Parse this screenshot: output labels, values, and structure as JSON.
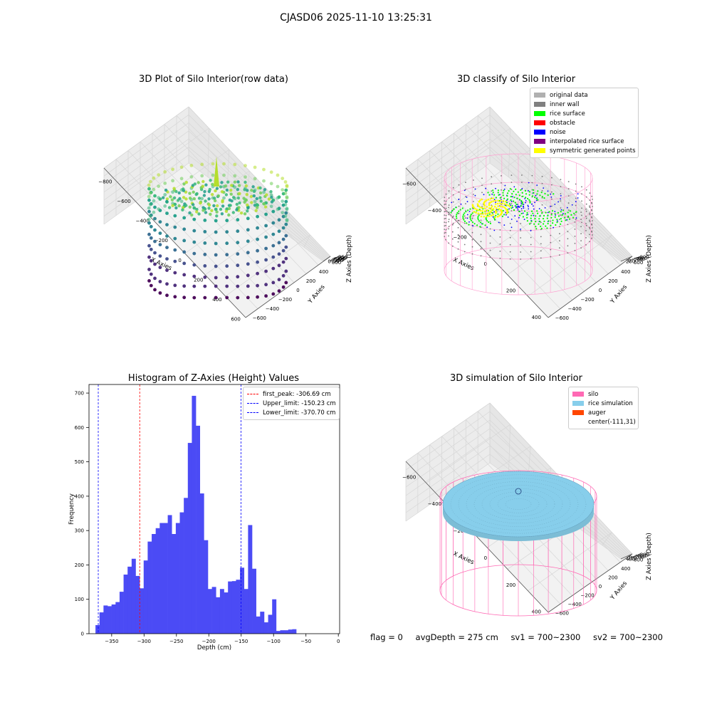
{
  "suptitle": "CJASD06 2025-11-10 13:25:31",
  "footer": {
    "flag": "flag = 0",
    "avg": "avgDepth = 275 cm",
    "sv1": "sv1 = 700~2300",
    "sv2": "sv2 = 700~2300"
  },
  "chart_data": [
    {
      "type": "scatter",
      "projection": "3d",
      "title": "3D Plot of Silo Interior(row data)",
      "xlabel": "X Axies",
      "ylabel": "Y Axies",
      "zlabel": "Z Axies (Depth)",
      "xticks": [
        "−800",
        "−600",
        "−400",
        "−200",
        "0",
        "200",
        "400",
        "600"
      ],
      "yticks": [
        "−600",
        "−400",
        "−200",
        "0",
        "200",
        "400",
        "600"
      ],
      "zticks": [
        "0",
        "−50",
        "−100",
        "−150",
        "−200",
        "−250",
        "−300",
        "−350"
      ],
      "xlim": [
        -800,
        600
      ],
      "ylim": [
        -600,
        600
      ],
      "zlim": [
        -380,
        0
      ],
      "colormap": "viridis",
      "grid": true
    },
    {
      "type": "scatter",
      "projection": "3d",
      "title": "3D classify of Silo Interior",
      "xlabel": "X Axies",
      "ylabel": "Y Axies",
      "zlabel": "Z Axies (Depth)",
      "xticks": [
        "−600",
        "−400",
        "−200",
        "0",
        "200",
        "400"
      ],
      "yticks": [
        "−600",
        "−400",
        "−200",
        "0",
        "200",
        "400",
        "600"
      ],
      "zticks": [
        "200",
        "0",
        "−200",
        "−400",
        "−600",
        "−800"
      ],
      "legend": [
        {
          "label": "original data",
          "color": "#b0b0b0"
        },
        {
          "label": "inner wall",
          "color": "#808080"
        },
        {
          "label": "rice surface",
          "color": "#00ff00"
        },
        {
          "label": "obstacle",
          "color": "#ff0000"
        },
        {
          "label": "noise",
          "color": "#0000ff"
        },
        {
          "label": "interpolated rice surface",
          "color": "#800080"
        },
        {
          "label": "symmetric generated points",
          "color": "#ffff00"
        }
      ],
      "legend_loc": "upper right",
      "grid": true
    },
    {
      "type": "bar",
      "title": "Histogram of Z-Axies (Height) Values",
      "xlabel": "Depth (cm)",
      "ylabel": "Frequency",
      "xlim": [
        -385,
        2
      ],
      "ylim": [
        0,
        725
      ],
      "xticks": [
        -350,
        -300,
        -250,
        -200,
        -150,
        -100,
        -50,
        0
      ],
      "yticks": [
        0,
        100,
        200,
        300,
        400,
        500,
        600,
        700
      ],
      "bin_width": 6.2,
      "bin_start": -375,
      "values": [
        25,
        62,
        82,
        80,
        85,
        92,
        122,
        172,
        195,
        218,
        168,
        132,
        213,
        268,
        290,
        307,
        322,
        322,
        345,
        290,
        322,
        353,
        395,
        555,
        692,
        605,
        408,
        272,
        130,
        136,
        106,
        130,
        120,
        152,
        153,
        157,
        192,
        130,
        316,
        189,
        50,
        64,
        33,
        55,
        100,
        8,
        10,
        10,
        12,
        13
      ],
      "bar_color": "#4b4bf5",
      "vlines": [
        {
          "label": "first_peak: -306.69 cm",
          "x": -306.69,
          "color": "#ff0000"
        },
        {
          "label": "Upper_limit: -150.23 cm",
          "x": -150.23,
          "color": "#0000ff"
        },
        {
          "label": "Lower_limit: -370.70 cm",
          "x": -370.7,
          "color": "#0000ff"
        }
      ],
      "legend_loc": "upper right"
    },
    {
      "type": "surface",
      "projection": "3d",
      "title": "3D simulation of Silo Interior",
      "xlabel": "X Axies",
      "ylabel": "Y Axies",
      "zlabel": "Z Axies (Depth)",
      "xticks": [
        "−600",
        "−400",
        "−200",
        "0",
        "200",
        "400"
      ],
      "yticks": [
        "−600",
        "−400",
        "−200",
        "0",
        "200",
        "400",
        "600"
      ],
      "zticks": [
        "400",
        "200",
        "0",
        "−200",
        "−400",
        "−600",
        "−800"
      ],
      "legend": [
        {
          "label": "silo",
          "color": "#ff69b4"
        },
        {
          "label": "rice simulation",
          "color": "#87ceeb"
        },
        {
          "label": "auger",
          "color": "#ff4500"
        },
        {
          "label": "center(-111,31)",
          "color": ""
        }
      ],
      "legend_loc": "upper right",
      "grid": true
    }
  ]
}
